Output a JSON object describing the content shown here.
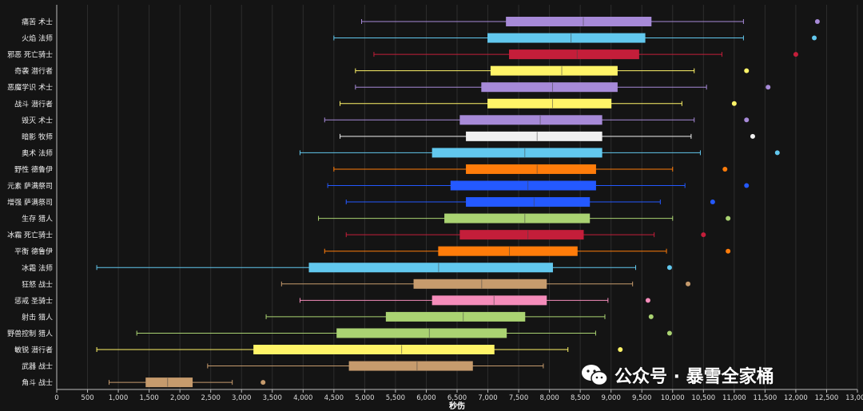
{
  "chart_data": {
    "type": "boxplot",
    "orientation": "horizontal",
    "title": "",
    "xlabel": "秒伤",
    "ylabel": "",
    "xlim": [
      0,
      13000
    ],
    "tick_step": 500,
    "grid": "vertical",
    "background": "#141414",
    "series": [
      {
        "name": "痛苦 术士",
        "color": "#a78ad8",
        "min": 4950,
        "q1": 7300,
        "median": 8550,
        "q3": 9650,
        "max": 11150,
        "outlier": 12350
      },
      {
        "name": "火焰 法师",
        "color": "#62c8ee",
        "min": 4500,
        "q1": 7000,
        "median": 8350,
        "q3": 9550,
        "max": 11150,
        "outlier": 12300
      },
      {
        "name": "邪恶 死亡骑士",
        "color": "#c41e3a",
        "min": 5150,
        "q1": 7350,
        "median": 8450,
        "q3": 9450,
        "max": 10800,
        "outlier": 12000
      },
      {
        "name": "奇袭 潜行者",
        "color": "#fff468",
        "min": 4850,
        "q1": 7050,
        "median": 8200,
        "q3": 9100,
        "max": 10350,
        "outlier": 11200
      },
      {
        "name": "恶魔学识 术士",
        "color": "#a78ad8",
        "min": 4850,
        "q1": 6900,
        "median": 8050,
        "q3": 9100,
        "max": 10550,
        "outlier": 11550
      },
      {
        "name": "战斗 潜行者",
        "color": "#fff468",
        "min": 4600,
        "q1": 7000,
        "median": 8050,
        "q3": 9000,
        "max": 10150,
        "outlier": 11000
      },
      {
        "name": "毁灭 术士",
        "color": "#a78ad8",
        "min": 4350,
        "q1": 6550,
        "median": 7850,
        "q3": 8850,
        "max": 10350,
        "outlier": 11200
      },
      {
        "name": "暗影 牧师",
        "color": "#f0f0f0",
        "min": 4600,
        "q1": 6650,
        "median": 7800,
        "q3": 8850,
        "max": 10300,
        "outlier": 11300
      },
      {
        "name": "奥术 法师",
        "color": "#62c8ee",
        "min": 3950,
        "q1": 6100,
        "median": 7600,
        "q3": 8850,
        "max": 10450,
        "outlier": 11700
      },
      {
        "name": "野性 德鲁伊",
        "color": "#ff7c0a",
        "min": 4500,
        "q1": 6650,
        "median": 7800,
        "q3": 8750,
        "max": 10000,
        "outlier": 10850
      },
      {
        "name": "元素 萨满祭司",
        "color": "#2459ff",
        "min": 4400,
        "q1": 6400,
        "median": 7650,
        "q3": 8750,
        "max": 10200,
        "outlier": 11200
      },
      {
        "name": "增强 萨满祭司",
        "color": "#2459ff",
        "min": 4700,
        "q1": 6650,
        "median": 7750,
        "q3": 8650,
        "max": 9800,
        "outlier": 10650
      },
      {
        "name": "生存 猎人",
        "color": "#aad372",
        "min": 4250,
        "q1": 6300,
        "median": 7600,
        "q3": 8650,
        "max": 10000,
        "outlier": 10900
      },
      {
        "name": "冰霜 死亡骑士",
        "color": "#c41e3a",
        "min": 4700,
        "q1": 6550,
        "median": 7650,
        "q3": 8550,
        "max": 9700,
        "outlier": 10500
      },
      {
        "name": "平衡 德鲁伊",
        "color": "#ff7c0a",
        "min": 4350,
        "q1": 6200,
        "median": 7350,
        "q3": 8450,
        "max": 9900,
        "outlier": 10900
      },
      {
        "name": "冰霜 法师",
        "color": "#62c8ee",
        "min": 650,
        "q1": 4100,
        "median": 6200,
        "q3": 8050,
        "max": 9400,
        "outlier": 9950
      },
      {
        "name": "狂怒 战士",
        "color": "#c69b6d",
        "min": 3650,
        "q1": 5800,
        "median": 6900,
        "q3": 7950,
        "max": 9350,
        "outlier": 10250
      },
      {
        "name": "惩戒 圣骑士",
        "color": "#f48cba",
        "min": 3950,
        "q1": 6100,
        "median": 7100,
        "q3": 7950,
        "max": 8950,
        "outlier": 9600
      },
      {
        "name": "射击 猎人",
        "color": "#aad372",
        "min": 3400,
        "q1": 5350,
        "median": 6600,
        "q3": 7600,
        "max": 8900,
        "outlier": 9650
      },
      {
        "name": "野兽控制 猎人",
        "color": "#aad372",
        "min": 1300,
        "q1": 4550,
        "median": 6050,
        "q3": 7300,
        "max": 8750,
        "outlier": 9950
      },
      {
        "name": "敏锐 潜行者",
        "color": "#fff468",
        "min": 650,
        "q1": 3200,
        "median": 5600,
        "q3": 7100,
        "max": 8300,
        "outlier": 9150
      },
      {
        "name": "武器 战士",
        "color": "#c69b6d",
        "min": 2450,
        "q1": 4750,
        "median": 5850,
        "q3": 6750,
        "max": 7900,
        "outlier": null
      },
      {
        "name": "角斗 战士",
        "color": "#c69b6d",
        "min": 850,
        "q1": 1450,
        "median": 1800,
        "q3": 2200,
        "max": 2850,
        "outlier": 3350
      }
    ]
  },
  "watermark": {
    "text": "公众号 · 暴雪全家桶",
    "icon": "wechat-icon"
  }
}
